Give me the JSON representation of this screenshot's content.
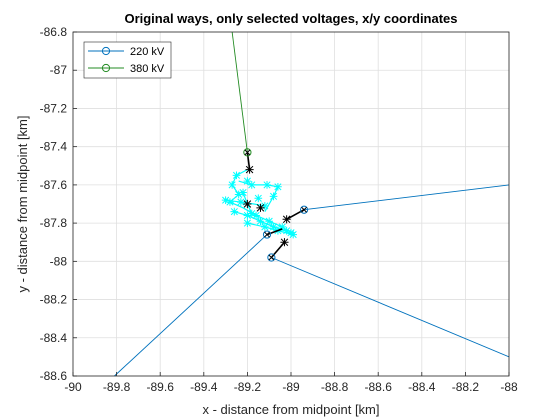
{
  "chart_data": {
    "type": "line",
    "title": "Original ways, only selected voltages, x/y coordinates",
    "xlabel": "x - distance from midpoint [km]",
    "ylabel": "y - distance from midpoint [km]",
    "xlim": [
      -90,
      -88
    ],
    "ylim": [
      -88.6,
      -86.8
    ],
    "xticks": [
      -90,
      -89.8,
      -89.6,
      -89.4,
      -89.2,
      -89,
      -88.8,
      -88.6,
      -88.4,
      -88.2,
      -88
    ],
    "yticks": [
      -86.8,
      -87,
      -87.2,
      -87.4,
      -87.6,
      -87.8,
      -88,
      -88.2,
      -88.4,
      -88.6
    ],
    "xtick_labels": [
      "-90",
      "-89.8",
      "-89.6",
      "-89.4",
      "-89.2",
      "-89",
      "-88.8",
      "-88.6",
      "-88.4",
      "-88.2",
      "-88"
    ],
    "ytick_labels": [
      "-86.8",
      "-87",
      "-87.2",
      "-87.4",
      "-87.6",
      "-87.8",
      "-88",
      "-88.2",
      "-88.4",
      "-88.6"
    ],
    "grid": true,
    "legend_position": "top-left",
    "series": [
      {
        "name": "220 kV",
        "color": "#0072BD",
        "marker": "circle",
        "segments": [
          [
            [
              -89.81,
              -88.6
            ],
            [
              -89.11,
              -87.86
            ]
          ],
          [
            [
              -88.94,
              -87.73
            ],
            [
              -88.0,
              -87.6
            ]
          ],
          [
            [
              -89.09,
              -87.98
            ],
            [
              -88.0,
              -88.5
            ]
          ]
        ],
        "markers": [
          [
            -89.11,
            -87.86
          ],
          [
            -88.94,
            -87.73
          ],
          [
            -89.09,
            -87.98
          ]
        ]
      },
      {
        "name": "380 kV",
        "color": "#238B23",
        "marker": "circle",
        "segments": [
          [
            [
              -89.27,
              -86.8
            ],
            [
              -89.2,
              -87.43
            ]
          ]
        ],
        "markers": [
          [
            -89.2,
            -87.43
          ]
        ]
      }
    ],
    "connections": {
      "color": "#000000",
      "segments": [
        [
          [
            -89.2,
            -87.43
          ],
          [
            -89.19,
            -87.52
          ]
        ],
        [
          [
            -88.94,
            -87.73
          ],
          [
            -89.02,
            -87.78
          ]
        ],
        [
          [
            -89.11,
            -87.86
          ],
          [
            -89.04,
            -87.83
          ]
        ],
        [
          [
            -89.09,
            -87.98
          ],
          [
            -89.03,
            -87.9
          ]
        ]
      ],
      "cross_markers": [
        [
          -89.19,
          -87.52
        ],
        [
          -89.02,
          -87.78
        ],
        [
          -89.03,
          -87.9
        ],
        [
          -89.2,
          -87.7
        ],
        [
          -89.14,
          -87.72
        ]
      ]
    },
    "substation_detail": {
      "color": "#00FFFF",
      "segments": [
        [
          [
            -89.2,
            -87.52
          ],
          [
            -89.25,
            -87.55
          ],
          [
            -89.27,
            -87.6
          ],
          [
            -89.24,
            -87.65
          ],
          [
            -89.28,
            -87.69
          ],
          [
            -89.22,
            -87.72
          ],
          [
            -89.16,
            -87.76
          ],
          [
            -89.1,
            -87.79
          ],
          [
            -89.04,
            -87.82
          ],
          [
            -89.0,
            -87.85
          ]
        ],
        [
          [
            -89.24,
            -87.58
          ],
          [
            -89.18,
            -87.6
          ],
          [
            -89.11,
            -87.6
          ],
          [
            -89.06,
            -87.61
          ]
        ],
        [
          [
            -89.3,
            -87.68
          ],
          [
            -89.23,
            -87.69
          ],
          [
            -89.17,
            -87.7
          ],
          [
            -89.12,
            -87.71
          ]
        ],
        [
          [
            -89.26,
            -87.74
          ],
          [
            -89.2,
            -87.76
          ],
          [
            -89.14,
            -87.79
          ],
          [
            -89.08,
            -87.82
          ],
          [
            -89.02,
            -87.84
          ]
        ],
        [
          [
            -89.2,
            -87.8
          ],
          [
            -89.12,
            -87.82
          ],
          [
            -89.06,
            -87.84
          ],
          [
            -88.99,
            -87.86
          ]
        ],
        [
          [
            -89.06,
            -87.61
          ],
          [
            -89.08,
            -87.66
          ],
          [
            -89.1,
            -87.7
          ],
          [
            -89.12,
            -87.74
          ]
        ],
        [
          [
            -89.22,
            -87.64
          ],
          [
            -89.2,
            -87.7
          ],
          [
            -89.18,
            -87.75
          ]
        ]
      ],
      "cross_markers": [
        [
          -89.25,
          -87.55
        ],
        [
          -89.27,
          -87.6
        ],
        [
          -89.24,
          -87.65
        ],
        [
          -89.28,
          -87.69
        ],
        [
          -89.16,
          -87.76
        ],
        [
          -89.1,
          -87.79
        ],
        [
          -89.04,
          -87.82
        ],
        [
          -89.0,
          -87.85
        ],
        [
          -89.18,
          -87.6
        ],
        [
          -89.11,
          -87.6
        ],
        [
          -89.06,
          -87.61
        ],
        [
          -89.3,
          -87.68
        ],
        [
          -89.23,
          -87.69
        ],
        [
          -89.12,
          -87.71
        ],
        [
          -89.26,
          -87.74
        ],
        [
          -89.2,
          -87.76
        ],
        [
          -89.14,
          -87.79
        ],
        [
          -89.08,
          -87.82
        ],
        [
          -89.02,
          -87.84
        ],
        [
          -89.2,
          -87.8
        ],
        [
          -89.12,
          -87.82
        ],
        [
          -89.06,
          -87.84
        ],
        [
          -88.99,
          -87.86
        ],
        [
          -89.08,
          -87.66
        ],
        [
          -89.22,
          -87.64
        ],
        [
          -89.18,
          -87.75
        ],
        [
          -89.2,
          -87.58
        ],
        [
          -89.15,
          -87.67
        ]
      ]
    }
  }
}
